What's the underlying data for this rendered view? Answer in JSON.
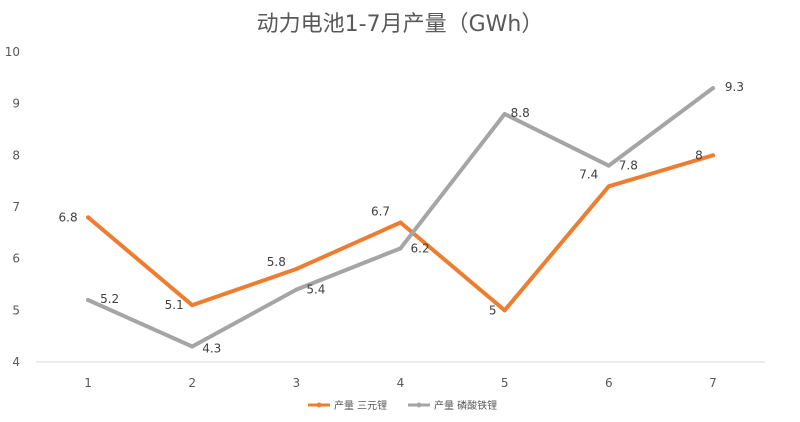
{
  "chart_data": {
    "type": "line",
    "title": "动力电池1-7月产量（GWh）",
    "categories": [
      "1",
      "2",
      "3",
      "4",
      "5",
      "6",
      "7"
    ],
    "y_ticks": [
      "4",
      "5",
      "6",
      "7",
      "8",
      "9",
      "10"
    ],
    "ylim": [
      4,
      10
    ],
    "grid": true,
    "legend_position": "bottom",
    "series": [
      {
        "name": "产量 三元锂",
        "values": [
          6.8,
          5.1,
          5.8,
          6.7,
          5,
          7.4,
          8
        ],
        "labels": [
          "6.8",
          "5.1",
          "5.8",
          "6.7",
          "5",
          "7.4",
          "8"
        ],
        "color": "#ED7D31"
      },
      {
        "name": "产量 磷酸铁锂",
        "values": [
          5.2,
          4.3,
          5.4,
          6.2,
          8.8,
          7.8,
          9.3
        ],
        "labels": [
          "5.2",
          "4.3",
          "5.4",
          "6.2",
          "8.8",
          "7.8",
          "9.3"
        ],
        "color": "#A5A5A5"
      }
    ]
  }
}
